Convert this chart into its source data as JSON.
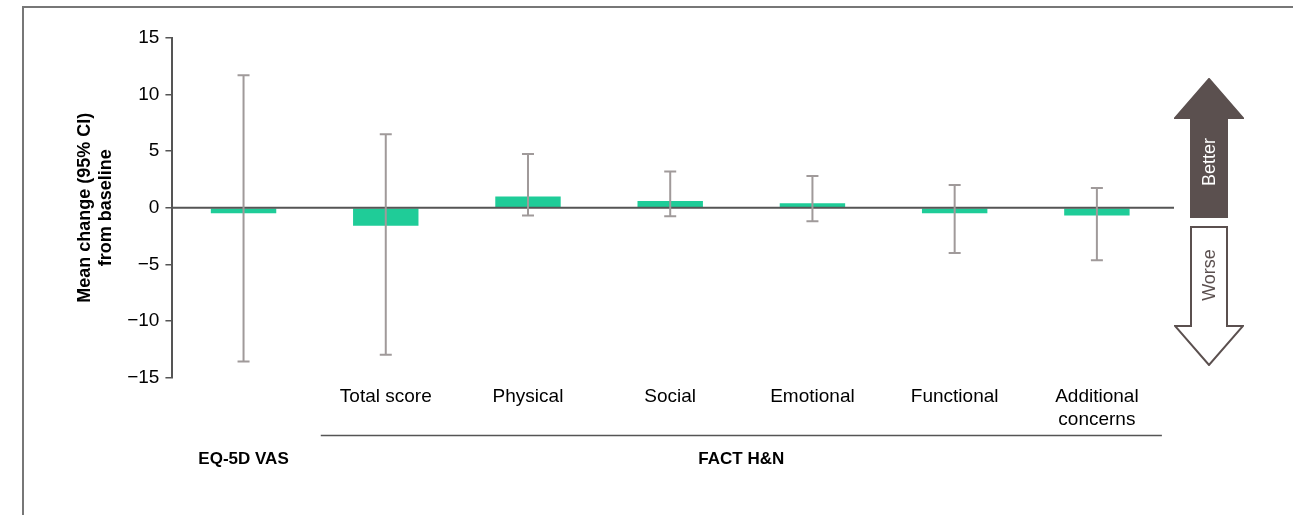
{
  "chart_data": {
    "type": "bar",
    "ylabel": "Mean change (95% CI) from baseline",
    "categories": [
      null,
      "Total score",
      "Physical",
      "Social",
      "Emotional",
      "Functional",
      "Additional concerns"
    ],
    "values": [
      -0.5,
      -1.6,
      1.0,
      0.6,
      0.4,
      -0.5,
      -0.7
    ],
    "errors": [
      [
        -13.6,
        11.7
      ],
      [
        -13.0,
        6.5
      ],
      [
        -0.7,
        4.75
      ],
      [
        -0.75,
        3.2
      ],
      [
        -1.2,
        2.8
      ],
      [
        -4.0,
        2.0
      ],
      [
        -4.65,
        1.75
      ]
    ],
    "color": "#1fcc98",
    "ylim": [
      -15,
      15
    ],
    "yticks": [
      {
        "value": -15,
        "label": "−15"
      },
      {
        "value": -10,
        "label": "−10"
      },
      {
        "value": -5,
        "label": "−5"
      },
      0,
      5,
      10,
      15
    ],
    "grid": false,
    "legend": false,
    "annotations": [
      "EQ-5D VAS",
      "FACT H&N",
      "Better",
      "Worse"
    ]
  }
}
